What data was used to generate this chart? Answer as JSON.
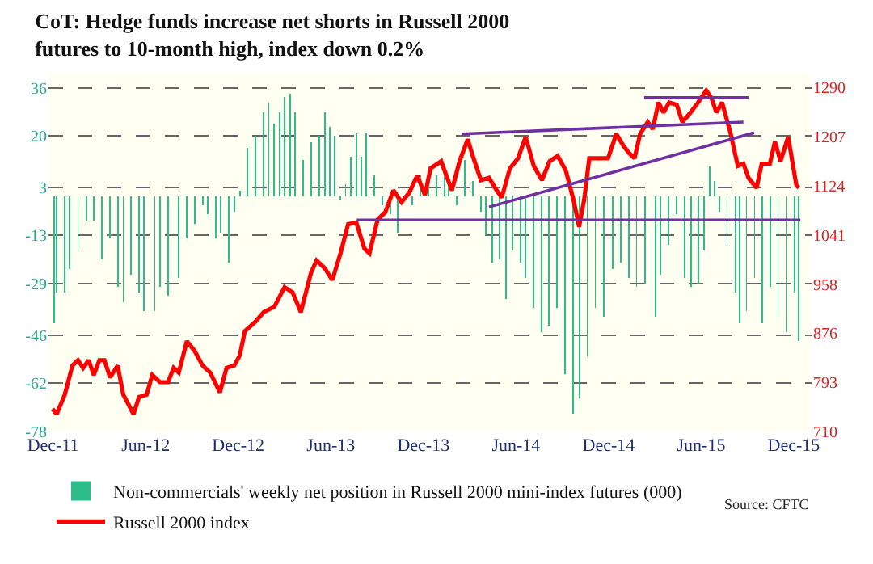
{
  "chart_data": {
    "type": "bar",
    "title": "CoT: Hedge funds increase net shorts in Russell 2000 futures to 10-month high, index down 0.2%",
    "annotations": [
      "Source: CFTC"
    ],
    "xlim": [
      "2011-11-27",
      "2016-01-05"
    ],
    "xticks": [
      {
        "value": "2011-12-06",
        "label": "Dec-11"
      },
      {
        "value": "2012-06-05",
        "label": "Jun-12"
      },
      {
        "value": "2012-12-04",
        "label": "Dec-12"
      },
      {
        "value": "2013-06-04",
        "label": "Jun-13"
      },
      {
        "value": "2013-12-03",
        "label": "Dec-13"
      },
      {
        "value": "2014-06-03",
        "label": "Jun-14"
      },
      {
        "value": "2014-12-02",
        "label": "Dec-14"
      },
      {
        "value": "2015-06-02",
        "label": "Jun-15"
      },
      {
        "value": "2015-12-01",
        "label": "Dec-15"
      }
    ],
    "ylim": [
      -78,
      41
    ],
    "yticks": [
      -78,
      -62,
      -46,
      -29,
      -13,
      3,
      20,
      36
    ],
    "y2lim": [
      710,
      1314
    ],
    "y2ticks": [
      710,
      793,
      876,
      958,
      1041,
      1124,
      1207,
      1290
    ],
    "grid": "y",
    "legend": "bottom",
    "series": [
      {
        "axis": "y",
        "name": "Non-commercials' weekly net position in Russell 2000 mini-index futures (000)",
        "color": "#2dbd8a",
        "x": [
          "2011-12-08",
          "2011-12-13",
          "2011-12-29",
          "2012-01-08",
          "2012-01-24",
          "2012-02-09",
          "2012-02-24",
          "2012-03-11",
          "2012-03-27",
          "2012-04-11",
          "2012-04-22",
          "2012-05-07",
          "2012-05-23",
          "2012-06-02",
          "2012-06-23",
          "2012-07-03",
          "2012-07-19",
          "2012-08-09",
          "2012-08-25",
          "2012-09-09",
          "2012-09-25",
          "2012-10-05",
          "2012-10-21",
          "2012-10-31",
          "2012-11-16",
          "2012-11-26",
          "2012-12-07",
          "2012-12-22",
          "2013-01-07",
          "2013-01-23",
          "2013-02-02",
          "2013-02-13",
          "2013-02-23",
          "2013-03-05",
          "2013-03-16",
          "2013-03-26",
          "2013-04-11",
          "2013-04-26",
          "2013-05-12",
          "2013-05-23",
          "2013-06-02",
          "2013-06-11",
          "2013-06-23",
          "2013-07-03",
          "2013-07-13",
          "2013-07-24",
          "2013-08-03",
          "2013-08-13",
          "2013-08-28",
          "2013-09-13",
          "2013-09-29",
          "2013-10-14",
          "2013-10-27",
          "2013-11-11",
          "2013-11-27",
          "2013-12-13",
          "2013-12-28",
          "2014-01-13",
          "2014-01-22",
          "2014-02-07",
          "2014-02-23",
          "2014-03-10",
          "2014-03-26",
          "2014-04-04",
          "2014-04-17",
          "2014-05-02",
          "2014-05-15",
          "2014-05-27",
          "2014-06-12",
          "2014-06-21",
          "2014-07-07",
          "2014-07-23",
          "2014-08-07",
          "2014-08-23",
          "2014-09-08",
          "2014-09-23",
          "2014-10-06",
          "2014-10-21",
          "2014-11-06",
          "2014-11-22",
          "2014-12-10",
          "2014-12-26",
          "2015-01-11",
          "2015-01-26",
          "2015-02-11",
          "2015-03-05",
          "2015-03-14",
          "2015-03-30",
          "2015-04-14",
          "2015-04-30",
          "2015-05-13",
          "2015-05-28",
          "2015-06-07",
          "2015-06-19",
          "2015-06-28",
          "2015-07-08",
          "2015-07-23",
          "2015-08-08",
          "2015-08-17",
          "2015-08-30",
          "2015-09-15",
          "2015-09-30",
          "2015-10-16",
          "2015-10-31",
          "2015-11-16",
          "2015-12-02",
          "2015-12-11"
        ],
        "values": [
          -42,
          -32,
          -32,
          -24,
          -18,
          -8,
          -8,
          -21,
          -14,
          -30,
          -35,
          -26,
          -32,
          -38,
          -38,
          -30,
          -33,
          -27,
          -14,
          -9,
          -3,
          -6,
          -14,
          -12,
          -22,
          -5,
          2,
          16,
          20,
          28,
          31,
          24,
          28,
          33,
          34,
          28,
          12,
          18,
          20,
          28,
          23,
          20,
          -1,
          4,
          13,
          21,
          13,
          21,
          7,
          -3,
          -6,
          -12,
          null,
          -3,
          7,
          3,
          7,
          7,
          4,
          -3,
          12,
          5,
          -5,
          -13,
          -22,
          -21,
          -34,
          -18,
          -22,
          -27,
          -37,
          -45,
          -43,
          -37,
          -59,
          -72,
          -67,
          -53,
          -37,
          -40,
          -24,
          -22,
          -27,
          -30,
          -29,
          -40,
          -26,
          -16,
          -6,
          -27,
          -30,
          -29,
          -18,
          10,
          5,
          -5,
          -16,
          -32,
          -42,
          -38,
          -27,
          -42,
          -30,
          -40,
          -45,
          -32,
          -48
        ]
      },
      {
        "type": "line",
        "axis": "y2",
        "name": "Russell 2000 index",
        "color": "#ff0000",
        "x": [
          "2011-12-05",
          "2011-12-13",
          "2011-12-29",
          "2012-01-13",
          "2012-01-24",
          "2012-02-03",
          "2012-02-14",
          "2012-02-24",
          "2012-03-06",
          "2012-03-16",
          "2012-03-27",
          "2012-04-11",
          "2012-04-22",
          "2012-05-02",
          "2012-05-12",
          "2012-05-23",
          "2012-06-07",
          "2012-06-18",
          "2012-07-03",
          "2012-07-19",
          "2012-07-30",
          "2012-08-09",
          "2012-08-25",
          "2012-09-09",
          "2012-09-25",
          "2012-10-10",
          "2012-10-29",
          "2012-11-11",
          "2012-11-26",
          "2012-12-07",
          "2012-12-17",
          "2013-01-07",
          "2013-01-23",
          "2013-02-13",
          "2013-03-05",
          "2013-03-21",
          "2013-04-06",
          "2013-04-26",
          "2013-05-07",
          "2013-05-23",
          "2013-06-07",
          "2013-06-23",
          "2013-07-08",
          "2013-07-24",
          "2013-08-09",
          "2013-08-19",
          "2013-09-04",
          "2013-09-19",
          "2013-10-05",
          "2013-10-21",
          "2013-11-05",
          "2013-11-21",
          "2013-12-06",
          "2013-12-17",
          "2014-01-07",
          "2014-01-17",
          "2014-01-28",
          "2014-02-12",
          "2014-02-28",
          "2014-03-10",
          "2014-03-26",
          "2014-04-11",
          "2014-04-26",
          "2014-05-06",
          "2014-05-22",
          "2014-06-07",
          "2014-06-22",
          "2014-07-08",
          "2014-07-24",
          "2014-08-08",
          "2014-08-24",
          "2014-09-09",
          "2014-09-24",
          "2014-10-05",
          "2014-10-15",
          "2014-10-25",
          "2014-11-15",
          "2014-12-01",
          "2014-12-17",
          "2015-01-01",
          "2015-01-12",
          "2015-01-22",
          "2015-02-02",
          "2015-02-17",
          "2015-02-27",
          "2015-03-10",
          "2015-03-20",
          "2015-03-31",
          "2015-04-15",
          "2015-04-26",
          "2015-05-12",
          "2015-05-27",
          "2015-06-12",
          "2015-06-22",
          "2015-07-02",
          "2015-07-13",
          "2015-07-29",
          "2015-08-13",
          "2015-08-24",
          "2015-09-03",
          "2015-09-19",
          "2015-09-29",
          "2015-10-15",
          "2015-10-25",
          "2015-11-05",
          "2015-11-20",
          "2015-12-06",
          "2015-12-11"
        ],
        "values": [
          748,
          739,
          772,
          821,
          830,
          817,
          830,
          805,
          830,
          830,
          801,
          821,
          772,
          756,
          739,
          768,
          772,
          805,
          793,
          793,
          817,
          809,
          862,
          846,
          821,
          809,
          776,
          817,
          821,
          838,
          879,
          895,
          911,
          920,
          953,
          944,
          911,
          977,
          998,
          985,
          965,
          1010,
          1059,
          1062,
          1018,
          1010,
          1067,
          1079,
          1116,
          1096,
          1112,
          1141,
          1108,
          1153,
          1165,
          1141,
          1116,
          1165,
          1202,
          1174,
          1133,
          1137,
          1116,
          1104,
          1153,
          1170,
          1206,
          1157,
          1133,
          1165,
          1174,
          1149,
          1100,
          1055,
          1100,
          1170,
          1170,
          1170,
          1211,
          1190,
          1178,
          1170,
          1211,
          1231,
          1219,
          1264,
          1247,
          1264,
          1260,
          1231,
          1247,
          1264,
          1284,
          1272,
          1247,
          1264,
          1215,
          1157,
          1161,
          1137,
          1120,
          1161,
          1161,
          1198,
          1165,
          1206,
          1125,
          1120
        ]
      },
      {
        "type": "line",
        "axis": "y2",
        "color": "#7030a0",
        "x": [
          "2013-07-25",
          "2015-12-14"
        ],
        "values": [
          1066,
          1066
        ]
      },
      {
        "type": "line",
        "axis": "y2",
        "color": "#7030a0",
        "x": [
          "2014-02-17",
          "2015-08-24"
        ],
        "values": [
          1211,
          1231
        ]
      },
      {
        "type": "line",
        "axis": "y2",
        "color": "#7030a0",
        "x": [
          "2014-04-11",
          "2015-09-14"
        ],
        "values": [
          1088,
          1213
        ]
      },
      {
        "type": "line",
        "axis": "y2",
        "color": "#7030a0",
        "x": [
          "2015-02-10",
          "2015-09-03"
        ],
        "values": [
          1272,
          1272
        ]
      }
    ]
  }
}
